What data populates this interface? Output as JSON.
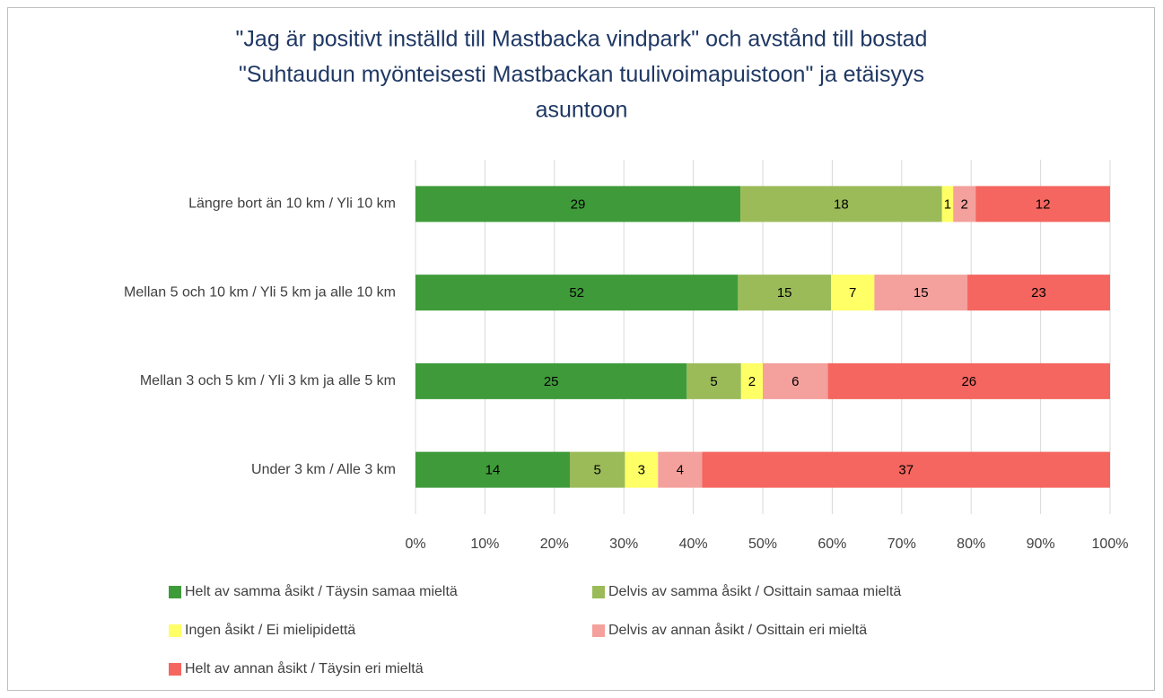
{
  "chart_data": {
    "type": "bar",
    "orientation": "horizontal",
    "stacked": "percent",
    "title": [
      "\"Jag är positivt inställd till Mastbacka vindpark\" och avstånd till bostad",
      "\"Suhtaudun myönteisesti Mastbackan tuulivoimapuistoon\" ja etäisyys",
      "asuntoon"
    ],
    "categories": [
      "Längre bort än 10 km / Yli 10 km",
      "Mellan 5 och 10 km / Yli 5 km ja alle 10 km",
      "Mellan 3 och 5 km / Yli 3 km ja alle 5 km",
      "Under 3 km / Alle 3 km"
    ],
    "series": [
      {
        "name": "Helt av samma åsikt / Täysin samaa mieltä",
        "color": "#3f9b3a",
        "values": [
          29,
          52,
          25,
          14
        ]
      },
      {
        "name": "Delvis av samma åsikt / Osittain samaa mieltä",
        "color": "#9bbb59",
        "values": [
          18,
          15,
          5,
          5
        ]
      },
      {
        "name": "Ingen åsikt / Ei mielipidettä",
        "color": "#ffff66",
        "values": [
          1,
          7,
          2,
          3
        ]
      },
      {
        "name": "Delvis av annan åsikt / Osittain eri mieltä",
        "color": "#f4a09c",
        "values": [
          2,
          15,
          6,
          4
        ]
      },
      {
        "name": "Helt av annan åsikt / Täysin eri mieltä",
        "color": "#f4665f",
        "values": [
          12,
          23,
          26,
          37
        ]
      }
    ],
    "xlim": [
      0,
      100
    ],
    "xticks": [
      {
        "value": 0,
        "label": "0%"
      },
      {
        "value": 10,
        "label": "10%"
      },
      {
        "value": 20,
        "label": "20%"
      },
      {
        "value": 30,
        "label": "30%"
      },
      {
        "value": 40,
        "label": "40%"
      },
      {
        "value": 50,
        "label": "50%"
      },
      {
        "value": 60,
        "label": "60%"
      },
      {
        "value": 70,
        "label": "70%"
      },
      {
        "value": 80,
        "label": "80%"
      },
      {
        "value": 90,
        "label": "90%"
      },
      {
        "value": 100,
        "label": "100%"
      }
    ],
    "grid": true,
    "legend": "bottom"
  }
}
